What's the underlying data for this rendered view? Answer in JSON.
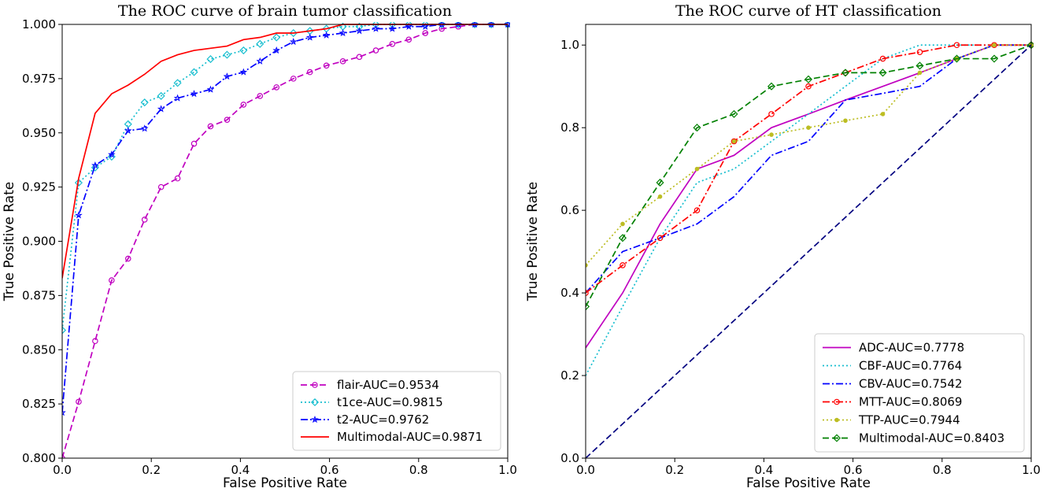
{
  "chart_data": [
    {
      "type": "line",
      "title": "The ROC curve of brain tumor classification",
      "xlabel": "False Positive Rate",
      "ylabel": "True Positive Rate",
      "xlim": [
        0.0,
        1.0
      ],
      "ylim": [
        0.8,
        1.0
      ],
      "xticks": [
        "0.0",
        "0.2",
        "0.4",
        "0.6",
        "0.8",
        "1.0"
      ],
      "yticks": [
        "0.800",
        "0.825",
        "0.850",
        "0.875",
        "0.900",
        "0.925",
        "0.950",
        "0.975",
        "1.000"
      ],
      "legend_position": "bottom-right",
      "series": [
        {
          "name": "flair-AUC=0.9534",
          "color": "#c000c0",
          "dash": "dashed",
          "marker": "circle",
          "x": [
            0.0,
            0.037,
            0.074,
            0.111,
            0.148,
            0.185,
            0.222,
            0.259,
            0.296,
            0.333,
            0.37,
            0.407,
            0.444,
            0.481,
            0.519,
            0.556,
            0.593,
            0.63,
            0.667,
            0.704,
            0.741,
            0.778,
            0.815,
            0.852,
            0.889,
            0.926,
            0.963,
            1.0
          ],
          "y": [
            0.8,
            0.826,
            0.854,
            0.882,
            0.892,
            0.91,
            0.925,
            0.929,
            0.945,
            0.953,
            0.956,
            0.963,
            0.967,
            0.971,
            0.975,
            0.978,
            0.981,
            0.983,
            0.985,
            0.988,
            0.991,
            0.993,
            0.996,
            0.998,
            0.999,
            1.0,
            1.0,
            1.0
          ]
        },
        {
          "name": "t1ce-AUC=0.9815",
          "color": "#17becf",
          "dash": "dotted",
          "marker": "diamond",
          "x": [
            0.0,
            0.037,
            0.074,
            0.111,
            0.148,
            0.185,
            0.222,
            0.259,
            0.296,
            0.333,
            0.37,
            0.407,
            0.444,
            0.481,
            0.519,
            0.556,
            0.593,
            0.63,
            0.667,
            0.704,
            0.741,
            0.778,
            0.815,
            0.852,
            0.889,
            0.926,
            0.963,
            1.0
          ],
          "y": [
            0.859,
            0.927,
            0.934,
            0.939,
            0.954,
            0.964,
            0.967,
            0.973,
            0.978,
            0.984,
            0.986,
            0.988,
            0.991,
            0.994,
            0.996,
            0.997,
            0.998,
            0.999,
            0.999,
            1.0,
            1.0,
            1.0,
            1.0,
            1.0,
            1.0,
            1.0,
            1.0,
            1.0
          ]
        },
        {
          "name": "t2-AUC=0.9762",
          "color": "#0000ff",
          "dash": "dashdot",
          "marker": "star",
          "x": [
            0.0,
            0.037,
            0.074,
            0.111,
            0.148,
            0.185,
            0.222,
            0.259,
            0.296,
            0.333,
            0.37,
            0.407,
            0.444,
            0.481,
            0.519,
            0.556,
            0.593,
            0.63,
            0.667,
            0.704,
            0.741,
            0.778,
            0.815,
            0.852,
            0.889,
            0.926,
            0.963,
            1.0
          ],
          "y": [
            0.821,
            0.912,
            0.935,
            0.94,
            0.951,
            0.952,
            0.961,
            0.966,
            0.968,
            0.97,
            0.976,
            0.978,
            0.983,
            0.988,
            0.992,
            0.994,
            0.995,
            0.996,
            0.997,
            0.998,
            0.998,
            0.999,
            0.999,
            1.0,
            1.0,
            1.0,
            1.0,
            1.0
          ]
        },
        {
          "name": "Multimodal-AUC=0.9871",
          "color": "#ff0000",
          "dash": "solid",
          "marker": "none",
          "x": [
            0.0,
            0.037,
            0.074,
            0.111,
            0.148,
            0.185,
            0.222,
            0.259,
            0.296,
            0.333,
            0.37,
            0.407,
            0.444,
            0.481,
            0.519,
            0.556,
            0.593,
            0.63,
            0.667,
            0.704,
            0.741,
            0.778,
            0.815,
            0.852,
            0.889,
            0.926,
            0.963,
            1.0
          ],
          "y": [
            0.883,
            0.929,
            0.959,
            0.968,
            0.972,
            0.977,
            0.983,
            0.986,
            0.988,
            0.989,
            0.99,
            0.993,
            0.994,
            0.996,
            0.996,
            0.997,
            0.998,
            1.0,
            1.0,
            1.0,
            1.0,
            1.0,
            1.0,
            1.0,
            1.0,
            1.0,
            1.0,
            1.0
          ]
        }
      ]
    },
    {
      "type": "line",
      "title": "The ROC curve of HT classification",
      "xlabel": "False Positive Rate",
      "ylabel": "True Positive Rate",
      "xlim": [
        0.0,
        1.0
      ],
      "ylim": [
        0.0,
        1.05
      ],
      "xticks": [
        "0.0",
        "0.2",
        "0.4",
        "0.6",
        "0.8",
        "1.0"
      ],
      "yticks": [
        "0.0",
        "0.2",
        "0.4",
        "0.6",
        "0.8",
        "1.0"
      ],
      "legend_position": "bottom-right",
      "series": [
        {
          "name": "ADC-AUC=0.7778",
          "color": "#c000c0",
          "dash": "solid",
          "marker": "none",
          "x": [
            0.0,
            0.083,
            0.167,
            0.25,
            0.333,
            0.417,
            0.5,
            0.583,
            0.667,
            0.75,
            0.833,
            0.917,
            1.0
          ],
          "y": [
            0.267,
            0.4,
            0.567,
            0.7,
            0.733,
            0.8,
            0.833,
            0.867,
            0.9,
            0.933,
            0.967,
            1.0,
            1.0
          ]
        },
        {
          "name": "CBF-AUC=0.7764",
          "color": "#17becf",
          "dash": "dotted",
          "marker": "none",
          "x": [
            0.0,
            0.083,
            0.167,
            0.25,
            0.333,
            0.417,
            0.5,
            0.583,
            0.667,
            0.75,
            0.833,
            0.917,
            1.0
          ],
          "y": [
            0.2,
            0.367,
            0.533,
            0.667,
            0.7,
            0.767,
            0.833,
            0.9,
            0.967,
            1.0,
            1.0,
            1.0,
            1.0
          ]
        },
        {
          "name": "CBV-AUC=0.7542",
          "color": "#0000ff",
          "dash": "dashdot",
          "marker": "none",
          "x": [
            0.0,
            0.083,
            0.167,
            0.25,
            0.333,
            0.417,
            0.5,
            0.583,
            0.667,
            0.75,
            0.833,
            0.917,
            1.0
          ],
          "y": [
            0.4,
            0.5,
            0.533,
            0.567,
            0.633,
            0.733,
            0.767,
            0.867,
            0.883,
            0.9,
            0.967,
            1.0,
            1.0
          ]
        },
        {
          "name": "MTT-AUC=0.8069",
          "color": "#ff0000",
          "dash": "dashdot",
          "marker": "circle",
          "x": [
            0.0,
            0.083,
            0.167,
            0.25,
            0.333,
            0.417,
            0.5,
            0.583,
            0.667,
            0.75,
            0.833,
            0.917,
            1.0
          ],
          "y": [
            0.4,
            0.467,
            0.533,
            0.6,
            0.767,
            0.833,
            0.9,
            0.933,
            0.967,
            0.983,
            1.0,
            1.0,
            1.0
          ]
        },
        {
          "name": "TTP-AUC=0.7944",
          "color": "#bcbd22",
          "dash": "dotted",
          "marker": "dot",
          "x": [
            0.0,
            0.083,
            0.167,
            0.25,
            0.333,
            0.417,
            0.5,
            0.583,
            0.667,
            0.75,
            0.833,
            0.917,
            1.0
          ],
          "y": [
            0.467,
            0.567,
            0.633,
            0.7,
            0.767,
            0.783,
            0.8,
            0.817,
            0.833,
            0.933,
            0.967,
            1.0,
            1.0
          ]
        },
        {
          "name": "Multimodal-AUC=0.8403",
          "color": "#008000",
          "dash": "dashed",
          "marker": "diamond",
          "x": [
            0.0,
            0.083,
            0.167,
            0.25,
            0.333,
            0.417,
            0.5,
            0.583,
            0.667,
            0.75,
            0.833,
            0.917,
            1.0
          ],
          "y": [
            0.367,
            0.533,
            0.667,
            0.8,
            0.833,
            0.9,
            0.917,
            0.933,
            0.933,
            0.95,
            0.967,
            0.967,
            1.0
          ]
        },
        {
          "name": "",
          "color": "#000080",
          "dash": "dashed",
          "marker": "none",
          "x": [
            0.0,
            1.0
          ],
          "y": [
            0.0,
            1.0
          ]
        }
      ]
    }
  ]
}
